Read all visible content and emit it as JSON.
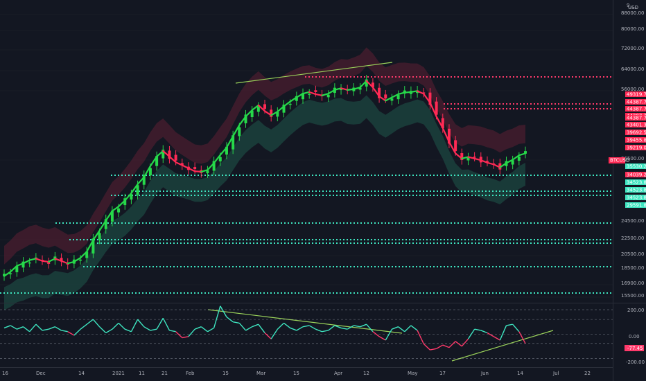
{
  "symbol": "BTCUSD",
  "currency": "USD",
  "colors": {
    "background": "#131722",
    "up": "#26d94a",
    "down": "#ff2a55",
    "support": "#3ee6c1",
    "resistance": "#ff3a6b",
    "band_red": "#5c1f33",
    "band_green": "#1d4d45",
    "trendline": "#9bd35a",
    "osc_up": "#3ee6c1",
    "osc_down": "#ff3a6b",
    "grid": "#2a2e39"
  },
  "chart_data": {
    "type": "line",
    "title": "",
    "xlabel": "",
    "ylabel": "",
    "price_scale": "log",
    "ylim": [
      14500,
      105000
    ],
    "x_ticks": [
      "16",
      "Dec",
      "14",
      "2021",
      "11",
      "21",
      "Feb",
      "15",
      "Mar",
      "15",
      "Apr",
      "12",
      "May",
      "17",
      "Jun",
      "14",
      "Jul",
      "22"
    ],
    "y_ticks": [
      "9___",
      "USD",
      "88000.00",
      "80000.00",
      "72000.00",
      "64000.00",
      "56000.00",
      "36500.00",
      "24500.00",
      "22500.00",
      "20500.00",
      "18500.00",
      "16900.00",
      "15500.00"
    ],
    "last_price_label": "BTCUSD",
    "price_labels_red": [
      "49319.75",
      "44387.77",
      "44387.77",
      "44387.77",
      "44387.77",
      "43401.38",
      "39692.53",
      "39455.80",
      "39219.06"
    ],
    "price_labels_green": [
      "35530.22",
      "34039.26",
      "34523.82",
      "34523.82",
      "34523.82",
      "29591.85"
    ],
    "series": [
      {
        "values": [
          17200,
          17700,
          18400,
          18700,
          19100,
          19300,
          19000,
          18900,
          19300,
          19000,
          18700,
          18900,
          19400,
          20200,
          21800,
          23200,
          24800,
          26400,
          27200,
          28300,
          29700,
          31500,
          33000,
          35500,
          37800,
          39200,
          37800,
          36400,
          35700,
          35000,
          34300,
          34200,
          34600,
          36200,
          38200,
          40100,
          43200,
          46500,
          49200,
          51300,
          53000,
          51000,
          49600,
          50800,
          52600,
          54300,
          55800,
          57200,
          57800,
          57000,
          56500,
          57200,
          58600,
          59300,
          58600,
          58900,
          59600,
          62200,
          59600,
          56200,
          54600,
          55800,
          57000,
          57600,
          57800,
          58200,
          57100,
          53900,
          49200,
          45600,
          41600,
          38600,
          37300,
          37700,
          37300,
          36900,
          36300,
          35900,
          35200,
          36200,
          37000,
          38100,
          38600
        ]
      }
    ],
    "oscillator": {
      "ticks": [
        "200.00",
        "0.00",
        "-77.45",
        "-200.00"
      ],
      "current_value": "-77.45",
      "ylim": [
        -260,
        240
      ],
      "values": [
        50,
        70,
        40,
        60,
        20,
        80,
        30,
        40,
        60,
        30,
        20,
        -10,
        40,
        80,
        120,
        60,
        10,
        40,
        90,
        40,
        20,
        120,
        60,
        30,
        40,
        130,
        30,
        20,
        -30,
        -20,
        40,
        60,
        20,
        50,
        230,
        140,
        100,
        90,
        30,
        60,
        80,
        10,
        -40,
        40,
        90,
        50,
        30,
        60,
        70,
        40,
        20,
        30,
        70,
        50,
        40,
        70,
        60,
        80,
        20,
        -20,
        -50,
        40,
        60,
        20,
        70,
        30,
        -80,
        -130,
        -120,
        -90,
        -110,
        -60,
        -100,
        -40,
        40,
        30,
        10,
        -20,
        -50,
        70,
        80,
        20,
        -77
      ]
    }
  }
}
